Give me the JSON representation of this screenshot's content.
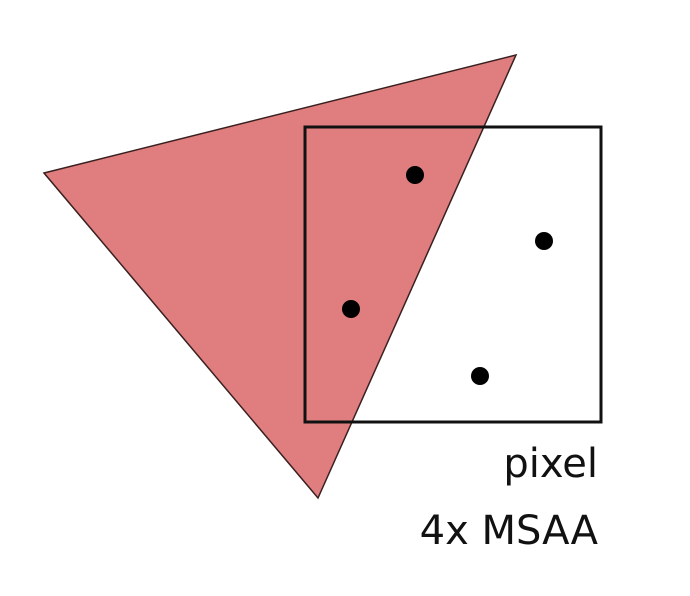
{
  "labels": {
    "pixel": "pixel",
    "msaa": "4x MSAA"
  },
  "colors": {
    "triangle_fill": "#e07d7f",
    "triangle_stroke": "#3a2020",
    "pixel_border": "#111111",
    "sample_dot": "#000000"
  },
  "samples": {
    "count": 4
  }
}
